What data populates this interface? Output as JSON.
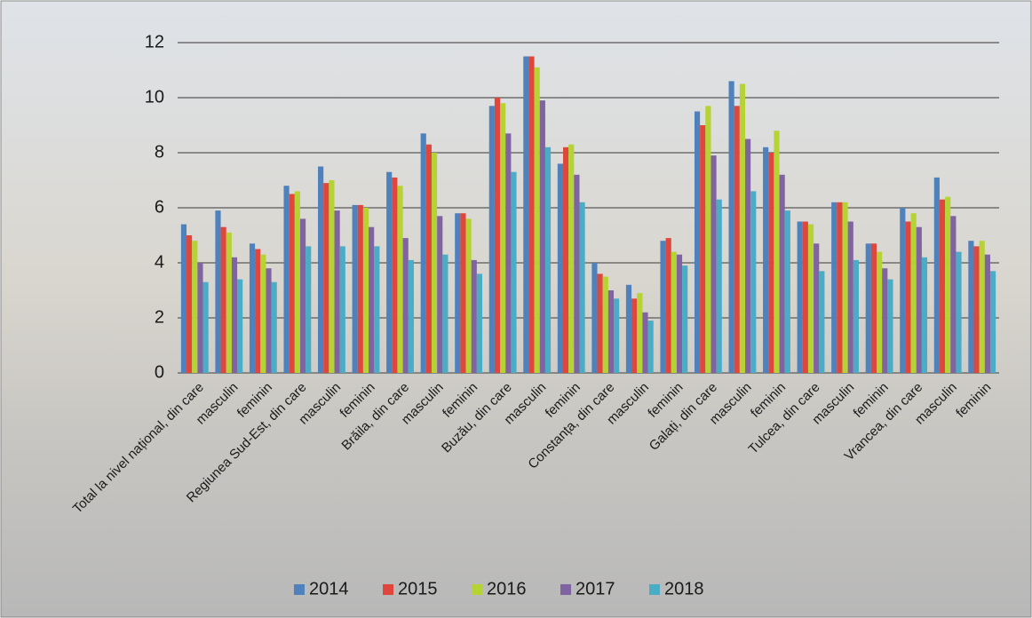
{
  "chart_data": {
    "type": "bar",
    "categories": [
      "Total la nivel național, din care",
      "masculin",
      "feminin",
      "Regiunea Sud-Est, din care",
      "masculin",
      "feminin",
      "Brăila, din care",
      "masculin",
      "feminin",
      "Buzău, din care",
      "masculin",
      "feminin",
      "Constanța, din care",
      "masculin",
      "feminin",
      "Galați, din care",
      "masculin",
      "feminin",
      "Tulcea, din care",
      "masculin",
      "feminin",
      "Vrancea, din care",
      "masculin",
      "feminin"
    ],
    "series": [
      {
        "name": "2014",
        "color": "#4f81bd",
        "values": [
          5.4,
          5.9,
          4.7,
          6.8,
          7.5,
          6.1,
          7.3,
          8.7,
          5.8,
          9.7,
          11.5,
          7.6,
          4.0,
          3.2,
          4.8,
          9.5,
          10.6,
          8.2,
          5.5,
          6.2,
          4.7,
          6.0,
          7.1,
          4.8
        ]
      },
      {
        "name": "2015",
        "color": "#e0473c",
        "values": [
          5.0,
          5.3,
          4.5,
          6.5,
          6.9,
          6.1,
          7.1,
          8.3,
          5.8,
          10.0,
          11.5,
          8.2,
          3.6,
          2.7,
          4.9,
          9.0,
          9.7,
          8.0,
          5.5,
          6.2,
          4.7,
          5.5,
          6.3,
          4.6
        ]
      },
      {
        "name": "2016",
        "color": "#b5d334",
        "values": [
          4.8,
          5.1,
          4.3,
          6.6,
          7.0,
          6.0,
          6.8,
          8.0,
          5.6,
          9.8,
          11.1,
          8.3,
          3.5,
          2.9,
          4.4,
          9.7,
          10.5,
          8.8,
          5.4,
          6.2,
          4.4,
          5.8,
          6.4,
          4.8
        ]
      },
      {
        "name": "2017",
        "color": "#8064a2",
        "values": [
          4.0,
          4.2,
          3.8,
          5.6,
          5.9,
          5.3,
          4.9,
          5.7,
          4.1,
          8.7,
          9.9,
          7.2,
          3.0,
          2.2,
          4.3,
          7.9,
          8.5,
          7.2,
          4.7,
          5.5,
          3.8,
          5.3,
          5.7,
          4.3
        ]
      },
      {
        "name": "2018",
        "color": "#4bacc6",
        "values": [
          3.3,
          3.4,
          3.3,
          4.6,
          4.6,
          4.6,
          4.1,
          4.3,
          3.6,
          7.3,
          8.2,
          6.2,
          2.7,
          1.9,
          3.9,
          6.3,
          6.6,
          5.9,
          3.7,
          4.1,
          3.4,
          4.2,
          4.4,
          3.7
        ]
      }
    ],
    "ylim": [
      0,
      12
    ],
    "yticks": [
      0,
      2,
      4,
      6,
      8,
      10,
      12
    ],
    "grid": true,
    "legend": "bottom"
  }
}
